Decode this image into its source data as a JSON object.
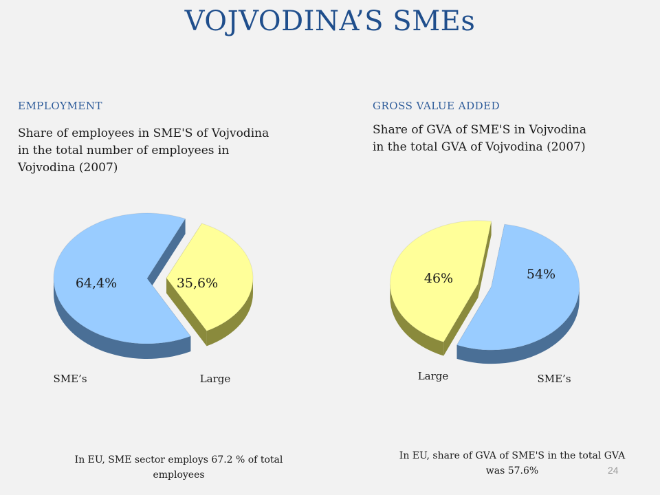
{
  "slide": {
    "title": "VOJVODINA’S SMEs",
    "page_number": "24"
  },
  "employment": {
    "heading": "EMPLOYMENT",
    "description_lines": [
      "Share of employees in SME'S of Vojvodina",
      "in the total number of employees  in",
      "Vojvodina (2007)"
    ],
    "note_lines": [
      "In EU, SME sector  employs  67.2 % of total",
      "employees"
    ]
  },
  "gva": {
    "heading": "GROSS VALUE ADDED",
    "description_lines": [
      "Share of GVA of SME'S in Vojvodina",
      "in the total GVA of Vojvodina (2007)"
    ],
    "note_lines": [
      "In EU, share of GVA of SME'S in the total GVA",
      "was  57.6%"
    ]
  },
  "colors": {
    "sme": "#99ccff",
    "sme_side": "#4a6f96",
    "large": "#ffff99",
    "large_side": "#8a8a3c"
  },
  "chart_data": [
    {
      "type": "pie",
      "title": "",
      "categories": [
        "SME’s",
        "Large"
      ],
      "values": [
        64.4,
        35.6
      ],
      "labels": [
        "64,4%",
        "35,6%"
      ],
      "exploded": "Large"
    },
    {
      "type": "pie",
      "title": "",
      "categories": [
        "Large",
        "SME’s"
      ],
      "values": [
        46,
        54
      ],
      "labels": [
        "46%",
        "54%"
      ],
      "exploded": "both"
    }
  ]
}
